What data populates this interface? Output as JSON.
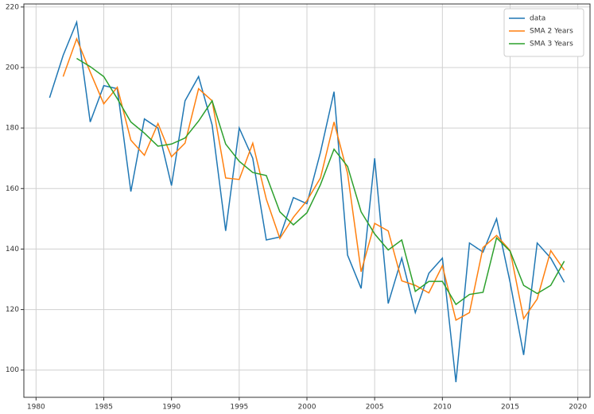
{
  "chart_data": {
    "type": "line",
    "x": [
      1981,
      1982,
      1983,
      1984,
      1985,
      1986,
      1987,
      1988,
      1989,
      1990,
      1991,
      1992,
      1993,
      1994,
      1995,
      1996,
      1997,
      1998,
      1999,
      2000,
      2001,
      2002,
      2003,
      2004,
      2005,
      2006,
      2007,
      2008,
      2009,
      2010,
      2011,
      2012,
      2013,
      2014,
      2015,
      2016,
      2017,
      2018,
      2019
    ],
    "series": [
      {
        "name": "data",
        "color": "#1f77b4",
        "values": [
          190,
          204,
          215,
          182,
          194,
          193,
          159,
          183,
          180,
          161,
          189,
          197,
          181,
          146,
          180,
          170,
          143,
          144,
          157,
          155,
          172,
          192,
          138,
          127,
          170,
          122,
          137,
          119,
          132,
          137,
          96,
          142,
          139,
          150,
          129,
          105,
          142,
          137,
          129
        ]
      },
      {
        "name": "SMA 2 Years",
        "color": "#ff7f0e",
        "values": [
          null,
          197,
          209.5,
          198.5,
          188,
          193.5,
          176,
          171,
          181.5,
          170.5,
          175,
          193,
          189,
          163.5,
          163,
          175,
          156.5,
          143.5,
          150.5,
          156,
          163.5,
          182,
          165,
          132.5,
          148.5,
          146,
          129.5,
          128,
          125.5,
          134.5,
          116.5,
          119,
          140.5,
          144.5,
          139.5,
          117,
          123.5,
          139.5,
          133
        ]
      },
      {
        "name": "SMA 3 Years",
        "color": "#2ca02c",
        "values": [
          null,
          null,
          203,
          200.3,
          197,
          189.7,
          182,
          178.3,
          174,
          174.7,
          176.7,
          182.3,
          189,
          174.7,
          169,
          165.3,
          164.3,
          152.3,
          148,
          152,
          161.3,
          173,
          167.3,
          152.3,
          145,
          139.7,
          143,
          126,
          129.3,
          129.3,
          121.7,
          125,
          125.7,
          143.7,
          139.3,
          128,
          125.3,
          128,
          136
        ]
      }
    ],
    "xlim": [
      1979.1,
      2020.9
    ],
    "ylim": [
      91,
      221
    ],
    "xticks": [
      1980,
      1985,
      1990,
      1995,
      2000,
      2005,
      2010,
      2015,
      2020
    ],
    "yticks": [
      100,
      120,
      140,
      160,
      180,
      200,
      220
    ],
    "grid": true,
    "legend": "upper right"
  }
}
